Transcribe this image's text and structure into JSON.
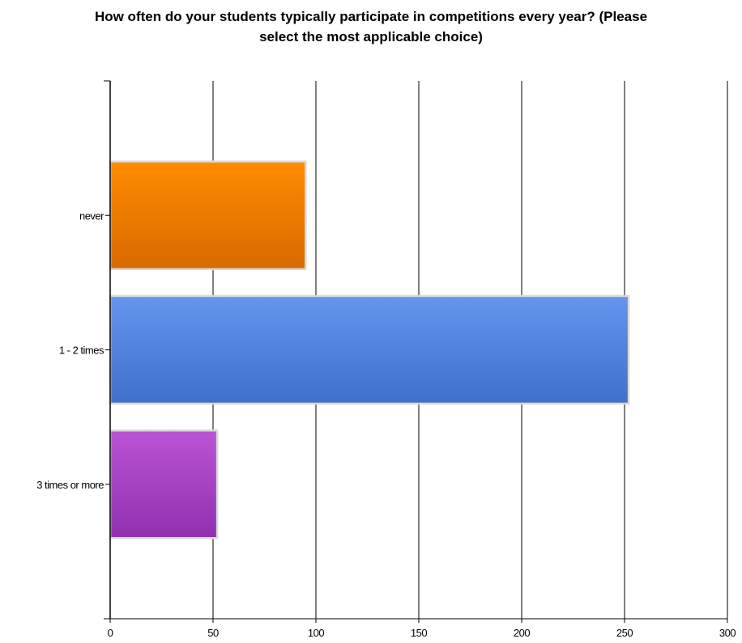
{
  "chart_data": {
    "type": "bar",
    "orientation": "horizontal",
    "title_lines": [
      "How often do your students typically participate in competitions every year? (Please",
      "select the most applicable choice)"
    ],
    "categories": [
      "never",
      "1 - 2 times",
      "3 times or more"
    ],
    "values": [
      95,
      252,
      52
    ],
    "xlim": [
      0,
      300
    ],
    "x_ticks": [
      "0",
      "50",
      "100",
      "150",
      "200",
      "250",
      "300"
    ],
    "grid": true,
    "legend": "none",
    "colors": {
      "never": [
        "#ff8c00",
        "#d86a00"
      ],
      "1 - 2 times": [
        "#6495ed",
        "#4070c8"
      ],
      "3 times or more": [
        "#ba55d3",
        "#9030b0"
      ]
    },
    "bar_border": "#d8d8d8"
  }
}
